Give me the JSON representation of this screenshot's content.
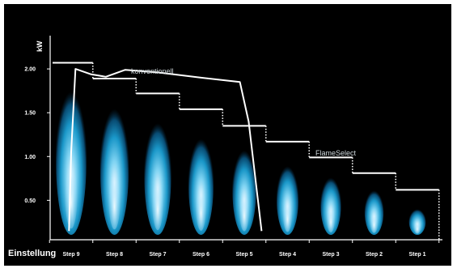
{
  "chart_data": {
    "type": "line",
    "ylabel": "kW",
    "xlabel": "Einstellung",
    "categories": [
      "Step 9",
      "Step 8",
      "Step 7",
      "Step 6",
      "Step 5",
      "Step 4",
      "Step 3",
      "Step 2",
      "Step 1"
    ],
    "yticks": [
      "0.50",
      "1.00",
      "1.50",
      "2.00"
    ],
    "ylim": [
      0.05,
      2.38
    ],
    "flame_relative_size": [
      1.0,
      0.88,
      0.78,
      0.67,
      0.59,
      0.48,
      0.4,
      0.31,
      0.18
    ],
    "series": [
      {
        "name": "konventionell",
        "x": [
          -0.05,
          0.0,
          0.1,
          0.45,
          0.8,
          1.25,
          2.0,
          3.0,
          3.9,
          4.1,
          4.4
        ],
        "y": [
          0.15,
          1.05,
          2.0,
          1.94,
          1.91,
          1.99,
          1.96,
          1.9,
          1.85,
          1.4,
          0.15
        ]
      },
      {
        "name": "FlameSelect",
        "steps": [
          2.07,
          1.89,
          1.72,
          1.54,
          1.35,
          1.17,
          0.99,
          0.81,
          0.62
        ]
      }
    ],
    "grid": false
  },
  "colors": {
    "background": "#000000",
    "line": "#ffffff",
    "flame_outer": "#0a5c8a",
    "flame_mid": "#1aa7d8",
    "flame_core": "#d9f3ff"
  }
}
